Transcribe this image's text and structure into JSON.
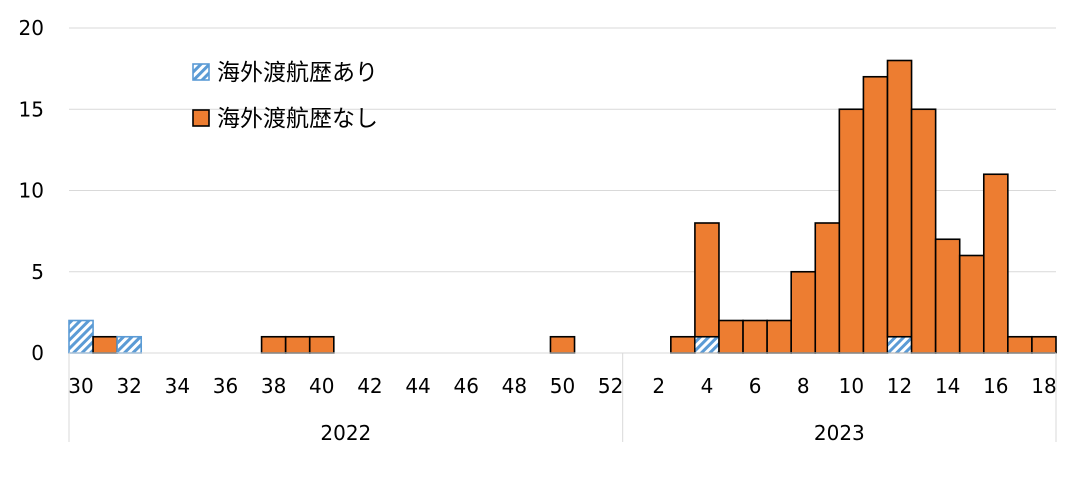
{
  "chart_data": {
    "type": "bar",
    "stacked": true,
    "ylim": [
      0,
      20
    ],
    "yticks": [
      0,
      5,
      10,
      15,
      20
    ],
    "grid": true,
    "legend_position": "top-left",
    "categories": [
      {
        "year": "2022",
        "week": 30
      },
      {
        "year": "2022",
        "week": 31
      },
      {
        "year": "2022",
        "week": 32
      },
      {
        "year": "2022",
        "week": 33
      },
      {
        "year": "2022",
        "week": 34
      },
      {
        "year": "2022",
        "week": 35
      },
      {
        "year": "2022",
        "week": 36
      },
      {
        "year": "2022",
        "week": 37
      },
      {
        "year": "2022",
        "week": 38
      },
      {
        "year": "2022",
        "week": 39
      },
      {
        "year": "2022",
        "week": 40
      },
      {
        "year": "2022",
        "week": 41
      },
      {
        "year": "2022",
        "week": 42
      },
      {
        "year": "2022",
        "week": 43
      },
      {
        "year": "2022",
        "week": 44
      },
      {
        "year": "2022",
        "week": 45
      },
      {
        "year": "2022",
        "week": 46
      },
      {
        "year": "2022",
        "week": 47
      },
      {
        "year": "2022",
        "week": 48
      },
      {
        "year": "2022",
        "week": 49
      },
      {
        "year": "2022",
        "week": 50
      },
      {
        "year": "2022",
        "week": 51
      },
      {
        "year": "2022",
        "week": 52
      },
      {
        "year": "2023",
        "week": 1
      },
      {
        "year": "2023",
        "week": 2
      },
      {
        "year": "2023",
        "week": 3
      },
      {
        "year": "2023",
        "week": 4
      },
      {
        "year": "2023",
        "week": 5
      },
      {
        "year": "2023",
        "week": 6
      },
      {
        "year": "2023",
        "week": 7
      },
      {
        "year": "2023",
        "week": 8
      },
      {
        "year": "2023",
        "week": 9
      },
      {
        "year": "2023",
        "week": 10
      },
      {
        "year": "2023",
        "week": 11
      },
      {
        "year": "2023",
        "week": 12
      },
      {
        "year": "2023",
        "week": 13
      },
      {
        "year": "2023",
        "week": 14
      },
      {
        "year": "2023",
        "week": 15
      },
      {
        "year": "2023",
        "week": 16
      },
      {
        "year": "2023",
        "week": 17
      },
      {
        "year": "2023",
        "week": 18
      }
    ],
    "xtick_labels": [
      "30",
      "32",
      "34",
      "36",
      "38",
      "40",
      "42",
      "44",
      "46",
      "48",
      "50",
      "52",
      "2",
      "4",
      "6",
      "8",
      "10",
      "12",
      "14",
      "16",
      "18"
    ],
    "year_labels": [
      "2022",
      "2023"
    ],
    "series": [
      {
        "name": "海外渡航歴あり",
        "color": "#5b9bd5",
        "pattern": "diagonal-hatch",
        "values": [
          2,
          0,
          1,
          0,
          0,
          0,
          0,
          0,
          0,
          0,
          0,
          0,
          0,
          0,
          0,
          0,
          0,
          0,
          0,
          0,
          0,
          0,
          0,
          0,
          0,
          0,
          1,
          0,
          0,
          0,
          0,
          0,
          0,
          0,
          1,
          0,
          0,
          0,
          0,
          0,
          0
        ]
      },
      {
        "name": "海外渡航歴なし",
        "color": "#ed7d31",
        "values": [
          0,
          1,
          0,
          0,
          0,
          0,
          0,
          0,
          1,
          1,
          1,
          0,
          0,
          0,
          0,
          0,
          0,
          0,
          0,
          0,
          1,
          0,
          0,
          0,
          0,
          1,
          7,
          2,
          2,
          2,
          5,
          8,
          15,
          17,
          17,
          15,
          7,
          6,
          11,
          1,
          1
        ]
      }
    ]
  }
}
